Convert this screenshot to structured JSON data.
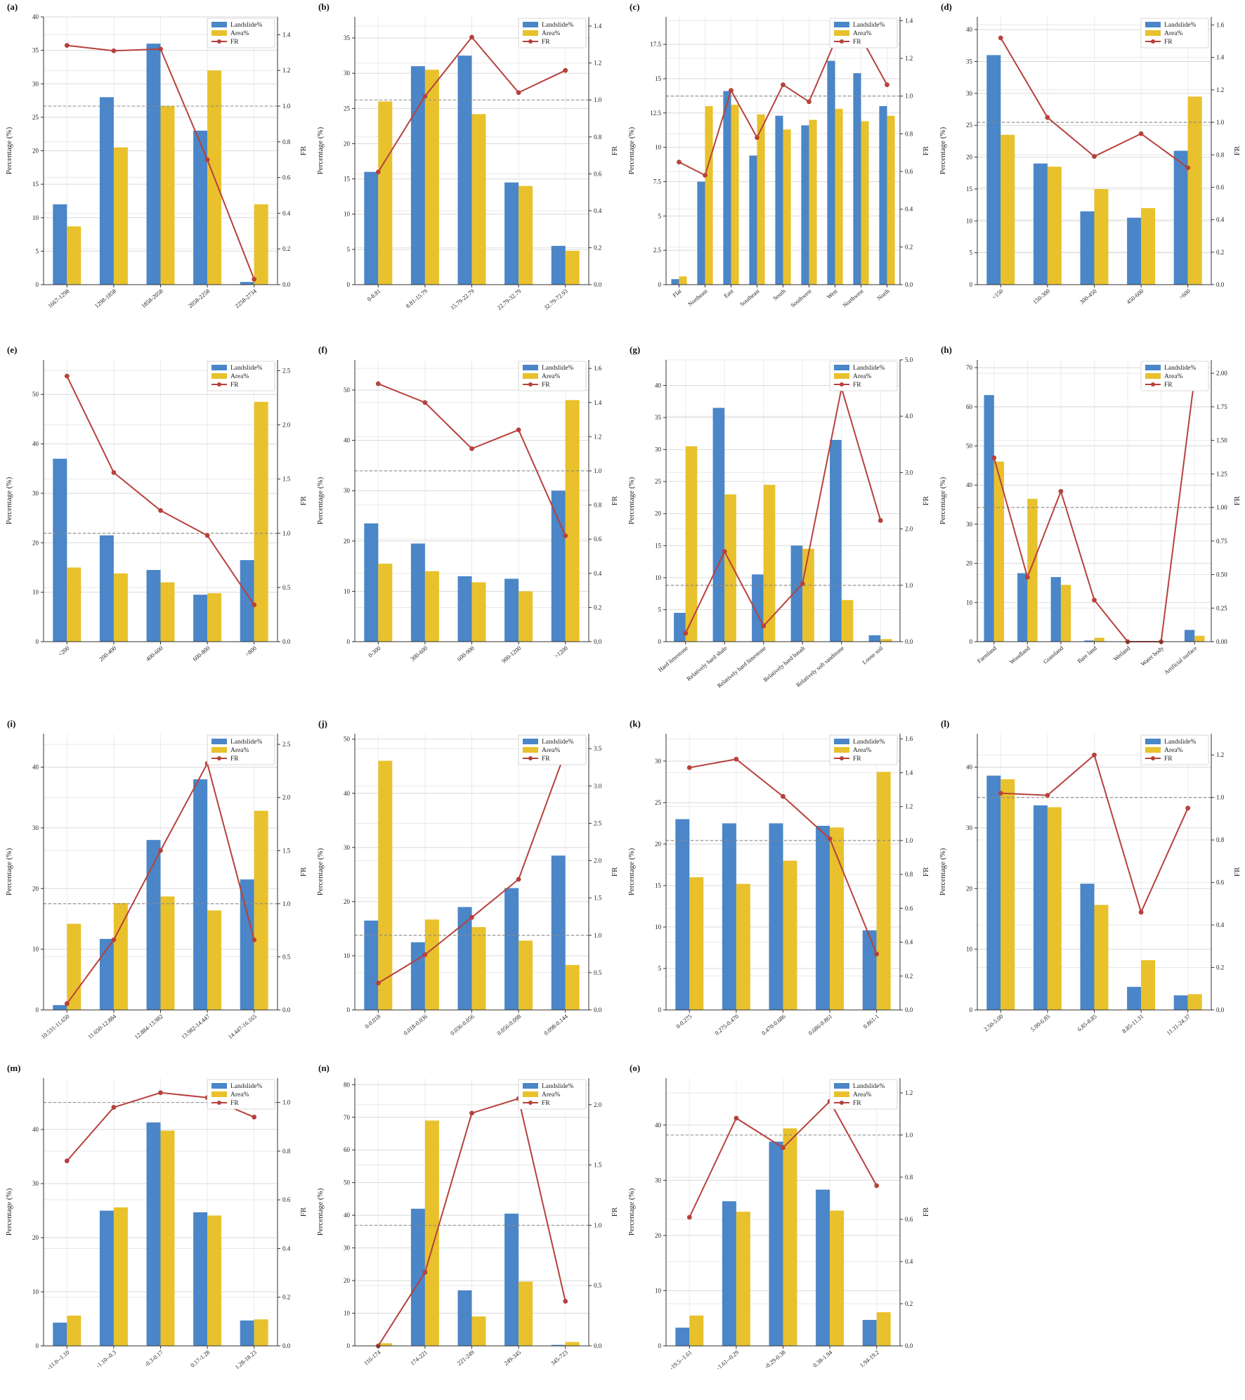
{
  "legend": {
    "landslide": "Landslide%",
    "area": "Area%",
    "fr": "FR"
  },
  "colors": {
    "landslide": "#4a86c8",
    "area": "#e8c12c",
    "fr": "#b7413c",
    "ref": "#888888"
  },
  "ylabel_left": "Percentage (%)",
  "ylabel_right": "FR",
  "chart_data": [
    {
      "type": "bar",
      "title": "(a)",
      "categories": [
        "1667-1298",
        "1298-1858",
        "1858-2058",
        "2058-2258",
        "2258-2734"
      ],
      "series": [
        {
          "name": "Landslide%",
          "values": [
            12,
            28,
            36,
            23,
            0.4
          ]
        },
        {
          "name": "Area%",
          "values": [
            8.7,
            20.5,
            26.7,
            32,
            12
          ]
        }
      ],
      "fr": [
        1.34,
        1.31,
        1.32,
        0.7,
        0.03
      ],
      "ylim": [
        0,
        40
      ],
      "yticks": [
        0,
        5,
        10,
        15,
        20,
        25,
        30,
        35,
        40
      ],
      "frlim": [
        0,
        1.5
      ],
      "frticks": [
        0,
        0.2,
        0.4,
        0.6,
        0.8,
        1.0,
        1.2,
        1.4
      ]
    },
    {
      "type": "bar",
      "title": "(b)",
      "categories": [
        "0-8.81",
        "8.81-15.79",
        "15.79-22.79",
        "22.79-32.79",
        "32.79-72.93"
      ],
      "series": [
        {
          "name": "Landslide%",
          "values": [
            16,
            31,
            32.5,
            14.5,
            5.5
          ]
        },
        {
          "name": "Area%",
          "values": [
            26,
            30.5,
            24.2,
            14,
            4.8
          ]
        }
      ],
      "fr": [
        0.61,
        1.02,
        1.34,
        1.04,
        1.16
      ],
      "ylim": [
        0,
        38
      ],
      "yticks": [
        0,
        5,
        10,
        15,
        20,
        25,
        30,
        35
      ],
      "frlim": [
        0,
        1.45
      ],
      "frticks": [
        0,
        0.2,
        0.4,
        0.6,
        0.8,
        1.0,
        1.2,
        1.4
      ]
    },
    {
      "type": "bar",
      "title": "(c)",
      "categories": [
        "Flat",
        "Northeast",
        "East",
        "Southeast",
        "South",
        "Southwest",
        "West",
        "Northwest",
        "North"
      ],
      "series": [
        {
          "name": "Landslide%",
          "values": [
            0.4,
            7.5,
            14.1,
            9.4,
            12.3,
            11.6,
            16.3,
            15.4,
            13.0
          ]
        },
        {
          "name": "Area%",
          "values": [
            0.6,
            13.0,
            13.1,
            12.4,
            11.3,
            12.0,
            12.8,
            11.9,
            12.3
          ]
        }
      ],
      "fr": [
        0.65,
        0.58,
        1.03,
        0.78,
        1.06,
        0.97,
        1.29,
        1.31,
        1.06
      ],
      "ylim": [
        0,
        19.5
      ],
      "yticks": [
        0,
        2.5,
        5.0,
        7.5,
        10.0,
        12.5,
        15.0,
        17.5
      ],
      "frlim": [
        0,
        1.42
      ],
      "frticks": [
        0,
        0.2,
        0.4,
        0.6,
        0.8,
        1.0,
        1.2,
        1.4
      ]
    },
    {
      "type": "bar",
      "title": "(d)",
      "categories": [
        "<150",
        "150-300",
        "300-450",
        "450-600",
        ">600"
      ],
      "series": [
        {
          "name": "Landslide%",
          "values": [
            36,
            19,
            11.5,
            10.5,
            21
          ]
        },
        {
          "name": "Area%",
          "values": [
            23.5,
            18.5,
            15,
            12,
            29.5
          ]
        }
      ],
      "fr": [
        1.52,
        1.03,
        0.79,
        0.93,
        0.72
      ],
      "ylim": [
        0,
        42
      ],
      "yticks": [
        0,
        5,
        10,
        15,
        20,
        25,
        30,
        35,
        40
      ],
      "frlim": [
        0,
        1.65
      ],
      "frticks": [
        0,
        0.2,
        0.4,
        0.6,
        0.8,
        1.0,
        1.2,
        1.4,
        1.6
      ]
    },
    {
      "type": "bar",
      "title": "(e)",
      "categories": [
        "<200",
        "200-400",
        "400-600",
        "600-800",
        ">800"
      ],
      "series": [
        {
          "name": "Landslide%",
          "values": [
            37,
            21.5,
            14.5,
            9.5,
            16.5
          ]
        },
        {
          "name": "Area%",
          "values": [
            15,
            13.8,
            12,
            9.8,
            48.5
          ]
        }
      ],
      "fr": [
        2.45,
        1.56,
        1.21,
        0.98,
        0.34
      ],
      "ylim": [
        0,
        57
      ],
      "yticks": [
        0,
        10,
        20,
        30,
        40,
        50
      ],
      "frlim": [
        0,
        2.6
      ],
      "frticks": [
        0,
        0.5,
        1.0,
        1.5,
        2.0,
        2.5
      ]
    },
    {
      "type": "bar",
      "title": "(f)",
      "categories": [
        "0-300",
        "300-600",
        "600-900",
        "900-1200",
        ">1200"
      ],
      "series": [
        {
          "name": "Landslide%",
          "values": [
            23.5,
            19.5,
            13,
            12.5,
            30
          ]
        },
        {
          "name": "Area%",
          "values": [
            15.5,
            14,
            11.8,
            10,
            48
          ]
        }
      ],
      "fr": [
        1.51,
        1.4,
        1.13,
        1.24,
        0.62
      ],
      "ylim": [
        0,
        56
      ],
      "yticks": [
        0,
        10,
        20,
        30,
        40,
        50
      ],
      "frlim": [
        0,
        1.65
      ],
      "frticks": [
        0,
        0.2,
        0.4,
        0.6,
        0.8,
        1.0,
        1.2,
        1.4,
        1.6
      ]
    },
    {
      "type": "bar",
      "title": "(g)",
      "categories": [
        "Hard limestone",
        "Relatively hard shale",
        "Relatively hard limestone",
        "Relatively hard basalt",
        "Relatively soft sandstone",
        "Loose soil"
      ],
      "series": [
        {
          "name": "Landslide%",
          "values": [
            4.5,
            36.5,
            10.5,
            15,
            31.5,
            1
          ]
        },
        {
          "name": "Area%",
          "values": [
            30.5,
            23,
            24.5,
            14.5,
            6.5,
            0.4
          ]
        }
      ],
      "fr": [
        0.15,
        1.6,
        0.28,
        1.03,
        4.5,
        2.15
      ],
      "ylim": [
        0,
        44
      ],
      "yticks": [
        0,
        5,
        10,
        15,
        20,
        25,
        30,
        35,
        40
      ],
      "frlim": [
        0,
        5
      ],
      "frticks": [
        0,
        1,
        2,
        3,
        4,
        5
      ]
    },
    {
      "type": "bar",
      "title": "(h)",
      "categories": [
        "Farmland",
        "Woodland",
        "Grassland",
        "Bare land",
        "Wetland",
        "Water body",
        "Artificial surface"
      ],
      "series": [
        {
          "name": "Landslide%",
          "values": [
            63,
            17.5,
            16.5,
            0.3,
            0,
            0,
            3
          ]
        },
        {
          "name": "Area%",
          "values": [
            46,
            36.5,
            14.5,
            1,
            0,
            0,
            1.5
          ]
        }
      ],
      "fr": [
        1.37,
        0.48,
        1.12,
        0.31,
        0,
        0,
        1.97
      ],
      "ylim": [
        0,
        72
      ],
      "yticks": [
        0,
        10,
        20,
        30,
        40,
        50,
        60,
        70
      ],
      "frlim": [
        0,
        2.1
      ],
      "frticks": [
        0,
        0.25,
        0.5,
        0.75,
        1.0,
        1.25,
        1.5,
        1.75,
        2.0
      ]
    },
    {
      "type": "bar",
      "title": "(i)",
      "categories": [
        "10.531-11.650",
        "11.650-12.884",
        "12.884-13.982",
        "13.982-14.447",
        "14.447-16.165"
      ],
      "series": [
        {
          "name": "Landslide%",
          "values": [
            0.8,
            11.7,
            28,
            38,
            21.5
          ]
        },
        {
          "name": "Area%",
          "values": [
            14.2,
            17.6,
            18.7,
            16.4,
            32.8
          ]
        }
      ],
      "fr": [
        0.06,
        0.66,
        1.5,
        2.32,
        0.66
      ],
      "ylim": [
        0,
        45.5
      ],
      "yticks": [
        0,
        10,
        20,
        30,
        40
      ],
      "frlim": [
        0,
        2.6
      ],
      "frticks": [
        0,
        0.5,
        1.0,
        1.5,
        2.0,
        2.5
      ]
    },
    {
      "type": "bar",
      "title": "(j)",
      "categories": [
        "0-0.018",
        "0.018-0.036",
        "0.036-0.056",
        "0.056-0.098",
        "0.098-0.144"
      ],
      "series": [
        {
          "name": "Landslide%",
          "values": [
            16.5,
            12.5,
            19,
            22.5,
            28.5
          ]
        },
        {
          "name": "Area%",
          "values": [
            46,
            16.7,
            15.3,
            12.8,
            8.3
          ]
        }
      ],
      "fr": [
        0.36,
        0.74,
        1.24,
        1.75,
        3.46
      ],
      "ylim": [
        0,
        51
      ],
      "yticks": [
        0,
        10,
        20,
        30,
        40,
        50
      ],
      "frlim": [
        0,
        3.7
      ],
      "frticks": [
        0,
        0.5,
        1.0,
        1.5,
        2.0,
        2.5,
        3.0,
        3.5
      ]
    },
    {
      "type": "bar",
      "title": "(k)",
      "categories": [
        "0-0.275",
        "0.275-0.470",
        "0.470-0.686",
        "0.686-0.861",
        "0.861-1"
      ],
      "series": [
        {
          "name": "Landslide%",
          "values": [
            23,
            22.5,
            22.5,
            22.2,
            9.6
          ]
        },
        {
          "name": "Area%",
          "values": [
            16,
            15.2,
            18,
            22,
            28.7
          ]
        }
      ],
      "fr": [
        1.43,
        1.48,
        1.26,
        1.01,
        0.33
      ],
      "ylim": [
        0,
        33.3
      ],
      "yticks": [
        0,
        5,
        10,
        15,
        20,
        25,
        30
      ],
      "frlim": [
        0,
        1.63
      ],
      "frticks": [
        0,
        0.2,
        0.4,
        0.6,
        0.8,
        1.0,
        1.2,
        1.4,
        1.6
      ]
    },
    {
      "type": "bar",
      "title": "(l)",
      "categories": [
        "2.50-5.00",
        "5.00-6.85",
        "6.85-8.85",
        "8.85-11.31",
        "11.31-24.37"
      ],
      "series": [
        {
          "name": "Landslide%",
          "values": [
            38.6,
            33.7,
            20.8,
            3.8,
            2.4
          ]
        },
        {
          "name": "Area%",
          "values": [
            38,
            33.4,
            17.3,
            8.2,
            2.6
          ]
        }
      ],
      "fr": [
        1.02,
        1.01,
        1.2,
        0.46,
        0.95
      ],
      "ylim": [
        0,
        45.5
      ],
      "yticks": [
        0,
        10,
        20,
        30,
        40
      ],
      "frlim": [
        0,
        1.3
      ],
      "frticks": [
        0,
        0.2,
        0.4,
        0.6,
        0.8,
        1.0,
        1.2
      ]
    },
    {
      "type": "bar",
      "title": "(m)",
      "categories": [
        "-11.0--1.10",
        "-1.10--0.3",
        "-0.3-0.17",
        "0.17-1.28",
        "1.28-18.23"
      ],
      "series": [
        {
          "name": "Landslide%",
          "values": [
            4.3,
            25,
            41.3,
            24.7,
            4.7
          ]
        },
        {
          "name": "Area%",
          "values": [
            5.6,
            25.6,
            39.8,
            24.1,
            4.9
          ]
        }
      ],
      "fr": [
        0.76,
        0.98,
        1.04,
        1.02,
        0.94
      ],
      "ylim": [
        0,
        49.5
      ],
      "yticks": [
        0,
        10,
        20,
        30,
        40
      ],
      "frlim": [
        0,
        1.1
      ],
      "frticks": [
        0,
        0.2,
        0.4,
        0.6,
        0.8,
        1.0
      ]
    },
    {
      "type": "bar",
      "title": "(n)",
      "categories": [
        "116-174",
        "174-221",
        "221-249",
        "249-345",
        "345-723"
      ],
      "series": [
        {
          "name": "Landslide%",
          "values": [
            0,
            42,
            17,
            40.5,
            0.3
          ]
        },
        {
          "name": "Area%",
          "values": [
            0.8,
            69,
            9,
            19.7,
            1.2
          ]
        }
      ],
      "fr": [
        0,
        0.61,
        1.93,
        2.05,
        0.37
      ],
      "ylim": [
        0,
        82
      ],
      "yticks": [
        0,
        10,
        20,
        30,
        40,
        50,
        60,
        70,
        80
      ],
      "frlim": [
        0,
        2.22
      ],
      "frticks": [
        0,
        0.5,
        1.0,
        1.5,
        2.0
      ]
    },
    {
      "type": "bar",
      "title": "(o)",
      "categories": [
        "-19.5--1.61",
        "-1.61--0.29",
        "-0.29-0.38",
        "0.38-1.94",
        "1.94-19.2"
      ],
      "series": [
        {
          "name": "Landslide%",
          "values": [
            3.3,
            26.2,
            37,
            28.3,
            4.7
          ]
        },
        {
          "name": "Area%",
          "values": [
            5.5,
            24.3,
            39.4,
            24.5,
            6.1
          ]
        }
      ],
      "fr": [
        0.61,
        1.08,
        0.94,
        1.16,
        0.76
      ],
      "ylim": [
        0,
        48.5
      ],
      "yticks": [
        0,
        10,
        20,
        30,
        40
      ],
      "frlim": [
        0,
        1.27
      ],
      "frticks": [
        0,
        0.2,
        0.4,
        0.6,
        0.8,
        1.0,
        1.2
      ]
    }
  ]
}
